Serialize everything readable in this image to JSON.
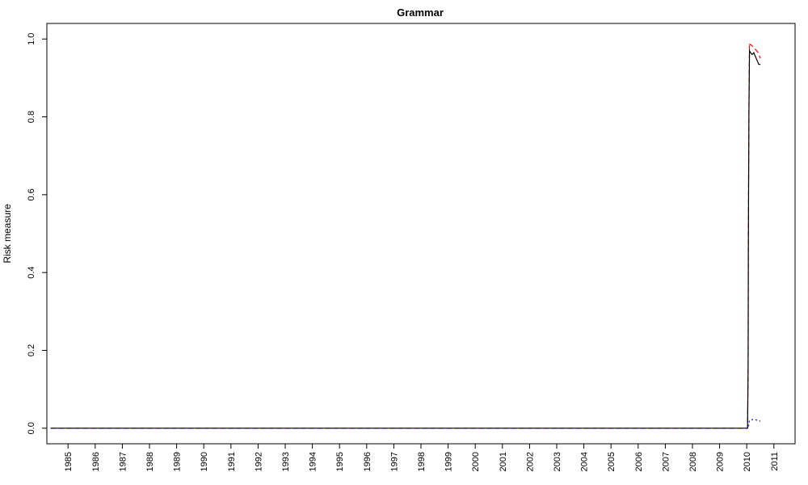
{
  "chart_data": {
    "type": "line",
    "title": "Grammar",
    "xlabel": "",
    "ylabel": "Risk measure",
    "x_tick_labels": [
      "1985",
      "1986",
      "1987",
      "1988",
      "1989",
      "1990",
      "1991",
      "1992",
      "1993",
      "1994",
      "1995",
      "1996",
      "1997",
      "1998",
      "1999",
      "2000",
      "2001",
      "2002",
      "2003",
      "2004",
      "2005",
      "2006",
      "2007",
      "2008",
      "2009",
      "2010",
      "2011"
    ],
    "y_tick_labels": [
      "0.0",
      "0.2",
      "0.4",
      "0.6",
      "0.8",
      "1.0"
    ],
    "y_ticks": [
      0,
      0.2,
      0.4,
      0.6,
      0.8,
      1.0
    ],
    "xlim": [
      1984.22,
      2011.78
    ],
    "ylim": [
      -0.04,
      1.04
    ],
    "grid": false,
    "legend": "none",
    "series": [
      {
        "color": "#ff0000",
        "style": "dashed",
        "x": [
          1984.36,
          2010.03,
          2010.05,
          2010.06,
          2010.08,
          2010.1,
          2010.12,
          2010.14,
          2010.16,
          2010.3,
          2010.42,
          2010.5
        ],
        "y": [
          0.0,
          0.0,
          0.16,
          0.5,
          0.83,
          0.99,
          0.985,
          0.985,
          0.985,
          0.975,
          0.965,
          0.95
        ]
      },
      {
        "color": "#000000",
        "style": "solid",
        "x": [
          1984.36,
          2010.03,
          2010.05,
          2010.06,
          2010.08,
          2010.1,
          2010.14,
          2010.2,
          2010.26,
          2010.32,
          2010.38,
          2010.44,
          2010.5
        ],
        "y": [
          0.0,
          0.0,
          0.16,
          0.48,
          0.81,
          0.97,
          0.965,
          0.96,
          0.965,
          0.955,
          0.945,
          0.935,
          0.935
        ]
      },
      {
        "color": "#0000ff",
        "style": "dotted",
        "x": [
          1984.36,
          2010.03,
          2010.06,
          2010.1,
          2010.2,
          2010.3,
          2010.4,
          2010.5
        ],
        "y": [
          0.0,
          0.0,
          0.005,
          0.02,
          0.022,
          0.022,
          0.02,
          0.018
        ]
      }
    ]
  },
  "colors": {
    "axis": "#000000",
    "background": "#ffffff"
  }
}
